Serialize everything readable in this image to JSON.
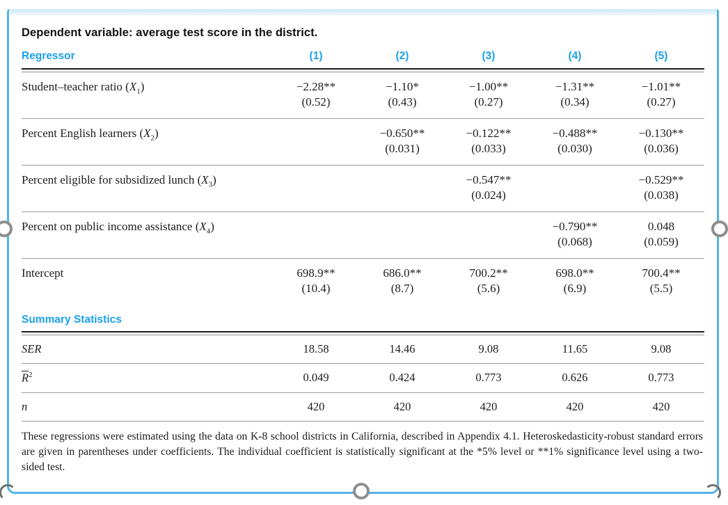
{
  "colors": {
    "accent_blue": "#1b9fe9",
    "frame_blue": "#52b2e8",
    "band_blue": "#cdeaf9",
    "rule_dark": "#1b1b1b",
    "rule_light": "#9c9c9c",
    "handle_gray": "#8e8e8e"
  },
  "table": {
    "dependent_note": "Dependent variable: average test score in the district.",
    "header": {
      "regressor": "Regressor",
      "columns": [
        "(1)",
        "(2)",
        "(3)",
        "(4)",
        "(5)"
      ]
    },
    "rows": [
      {
        "label_pre": "Student–teacher ratio (",
        "label_var": "X",
        "label_sub": "1",
        "label_post": ")",
        "cells": [
          [
            "−2.28**",
            "(0.52)"
          ],
          [
            "−1.10*",
            "(0.43)"
          ],
          [
            "−1.00**",
            "(0.27)"
          ],
          [
            "−1.31**",
            "(0.34)"
          ],
          [
            "−1.01**",
            "(0.27)"
          ]
        ]
      },
      {
        "label_pre": "Percent English learners (",
        "label_var": "X",
        "label_sub": "2",
        "label_post": ")",
        "cells": [
          null,
          [
            "−0.650**",
            "(0.031)"
          ],
          [
            "−0.122**",
            "(0.033)"
          ],
          [
            "−0.488**",
            "(0.030)"
          ],
          [
            "−0.130**",
            "(0.036)"
          ]
        ]
      },
      {
        "label_pre": "Percent eligible for subsidized lunch (",
        "label_var": "X",
        "label_sub": "3",
        "label_post": ")",
        "cells": [
          null,
          null,
          [
            "−0.547**",
            "(0.024)"
          ],
          null,
          [
            "−0.529**",
            "(0.038)"
          ]
        ]
      },
      {
        "label_pre": "Percent on public income assistance (",
        "label_var": "X",
        "label_sub": "4",
        "label_post": ")",
        "cells": [
          null,
          null,
          null,
          [
            "−0.790**",
            "(0.068)"
          ],
          [
            "0.048",
            "(0.059)"
          ]
        ]
      },
      {
        "label": "Intercept",
        "cells": [
          [
            "698.9**",
            "(10.4)"
          ],
          [
            "686.0**",
            "(8.7)"
          ],
          [
            "700.2**",
            "(5.6)"
          ],
          [
            "698.0**",
            "(6.9)"
          ],
          [
            "700.4**",
            "(5.5)"
          ]
        ]
      }
    ],
    "summary_title": "Summary Statistics",
    "summary_rows": [
      {
        "type": "ser",
        "label": "SER",
        "values": [
          "18.58",
          "14.46",
          "9.08",
          "11.65",
          "9.08"
        ]
      },
      {
        "type": "rbar2",
        "label_base": "R",
        "label_sup": "2",
        "values": [
          "0.049",
          "0.424",
          "0.773",
          "0.626",
          "0.773"
        ]
      },
      {
        "type": "n",
        "label": "n",
        "values": [
          "420",
          "420",
          "420",
          "420",
          "420"
        ]
      }
    ],
    "footnote": "These regressions were estimated using the data on K-8 school districts in California, described in Appendix 4.1. Heteroskedasticity-robust standard errors are given in parentheses under coefficients. The individual coefficient is statistically significant at the *5% level or **1% significance level using a two-sided test."
  }
}
